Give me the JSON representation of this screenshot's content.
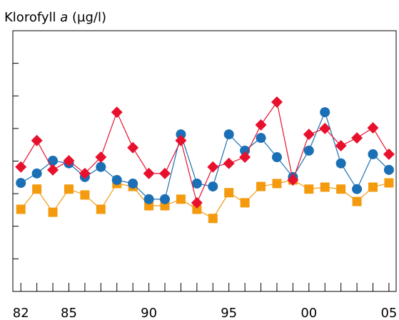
{
  "chart_data": {
    "type": "line",
    "title": [
      "Klorofyll",
      "a",
      "(µg/l)"
    ],
    "x": [
      1982,
      1983,
      1984,
      1985,
      1986,
      1987,
      1988,
      1989,
      1990,
      1991,
      1992,
      1993,
      1994,
      1995,
      1996,
      1997,
      1998,
      1999,
      2000,
      2001,
      2002,
      2003,
      2004,
      2005
    ],
    "xlim": [
      1981.5,
      2005.45
    ],
    "xticks": [
      {
        "value": 1982,
        "label": "82"
      },
      1983,
      1984,
      {
        "value": 1985,
        "label": "85"
      },
      1986,
      1987,
      1988,
      1989,
      {
        "value": 1990,
        "label": "90"
      },
      1991,
      1992,
      1993,
      1994,
      {
        "value": 1995,
        "label": "95"
      },
      1996,
      1997,
      1998,
      1999,
      {
        "value": 2000,
        "label": "00"
      },
      2001,
      2002,
      2003,
      2004,
      {
        "value": 2005,
        "label": "05"
      }
    ],
    "ylim": [
      0,
      8
    ],
    "yticks": [
      1,
      2,
      3,
      4,
      5,
      6,
      7
    ],
    "series": [
      {
        "color": "#f39a0e",
        "marker": "square",
        "values": [
          2.52,
          3.14,
          2.43,
          3.14,
          2.96,
          2.52,
          3.31,
          3.22,
          2.63,
          2.63,
          2.83,
          2.52,
          2.24,
          3.03,
          2.72,
          3.22,
          3.31,
          3.42,
          3.14,
          3.2,
          3.14,
          2.76,
          3.2,
          3.33
        ]
      },
      {
        "color": "#1a6fb5",
        "marker": "circle",
        "values": [
          3.33,
          3.62,
          4.01,
          3.93,
          3.51,
          3.82,
          3.42,
          3.31,
          2.83,
          2.83,
          4.82,
          3.31,
          3.22,
          4.82,
          4.32,
          4.71,
          4.12,
          3.51,
          4.32,
          5.5,
          3.93,
          3.14,
          4.21,
          3.73
        ]
      },
      {
        "color": "#e8112d",
        "marker": "diamond",
        "values": [
          3.82,
          4.63,
          3.73,
          4.01,
          3.62,
          4.12,
          5.5,
          4.41,
          3.62,
          3.62,
          4.63,
          2.72,
          3.82,
          3.93,
          4.12,
          5.11,
          5.81,
          3.42,
          4.82,
          5.0,
          4.47,
          4.71,
          5.02,
          4.21
        ]
      }
    ]
  }
}
